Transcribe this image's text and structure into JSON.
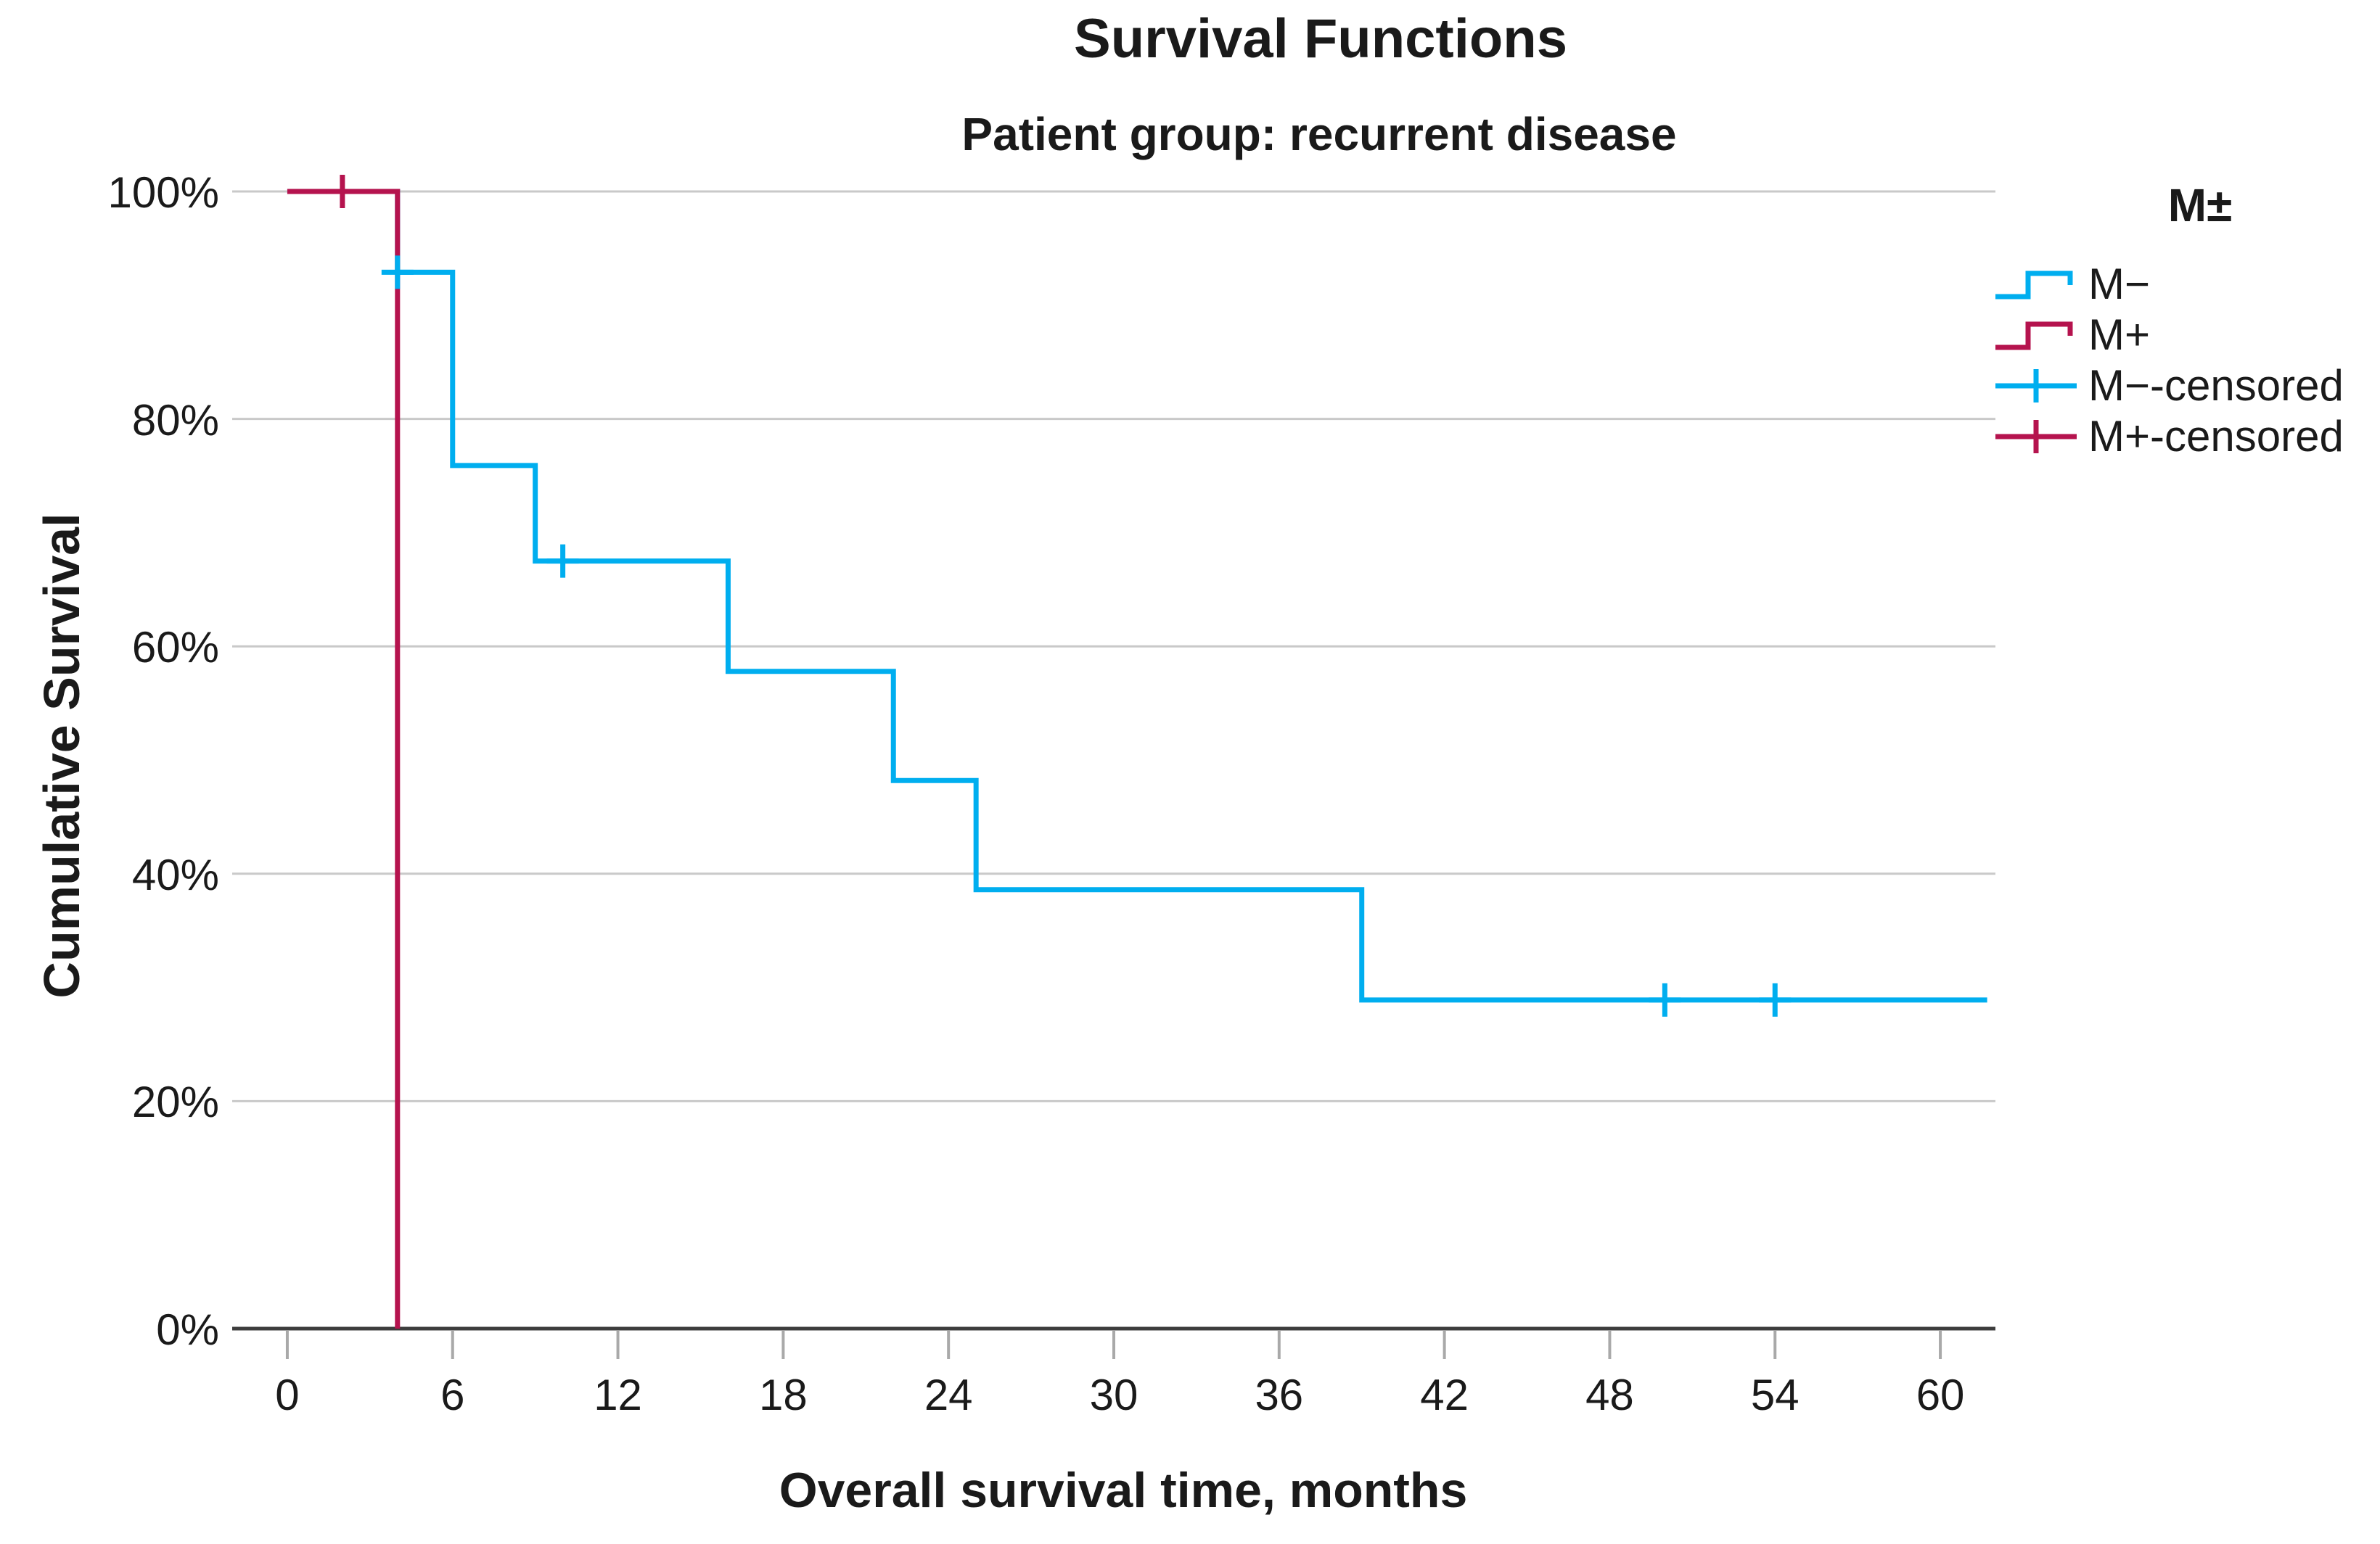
{
  "chart_data": {
    "type": "line",
    "subtype": "kaplan_meier_step",
    "title": "Survival Functions",
    "subtitle": "Patient group: recurrent disease",
    "xlabel": "Overall survival time, months",
    "ylabel": "Cumulative Survival",
    "xlim": [
      -2,
      62
    ],
    "ylim": [
      0,
      100
    ],
    "xticks": [
      0,
      6,
      12,
      18,
      24,
      30,
      36,
      42,
      48,
      54,
      60
    ],
    "yticks": [
      0,
      20,
      40,
      60,
      80,
      100
    ],
    "ytick_suffix": "%",
    "grid": "horizontal-only",
    "legend": {
      "title": "M±",
      "position": "right",
      "entries": [
        {
          "label": "M−",
          "marker": "step-line",
          "color": "#00aeef"
        },
        {
          "label": "M+",
          "marker": "step-line",
          "color": "#b5134e"
        },
        {
          "label": "M−-censored",
          "marker": "plus",
          "color": "#00aeef"
        },
        {
          "label": "M+-censored",
          "marker": "plus",
          "color": "#b5134e"
        }
      ]
    },
    "series": [
      {
        "name": "M−",
        "color": "#00aeef",
        "points": [
          [
            0,
            100
          ],
          [
            4,
            100
          ],
          [
            4,
            92.9
          ],
          [
            6,
            92.9
          ],
          [
            6,
            75.9
          ],
          [
            9,
            75.9
          ],
          [
            9,
            67.5
          ],
          [
            16,
            67.5
          ],
          [
            16,
            57.8
          ],
          [
            22,
            57.8
          ],
          [
            22,
            48.2
          ],
          [
            25,
            48.2
          ],
          [
            25,
            38.6
          ],
          [
            39,
            38.6
          ],
          [
            39,
            28.9
          ],
          [
            61.7,
            28.9
          ]
        ],
        "censored": [
          [
            4,
            92.9
          ],
          [
            10,
            67.5
          ],
          [
            50,
            28.9
          ],
          [
            54,
            28.9
          ]
        ]
      },
      {
        "name": "M+",
        "color": "#b5134e",
        "points": [
          [
            0,
            100
          ],
          [
            4,
            100
          ],
          [
            4,
            0
          ]
        ],
        "censored": [
          [
            2,
            100
          ]
        ]
      }
    ]
  },
  "colors": {
    "grid": "#c9c9c9",
    "axis": "#3d3d3d",
    "tick_mark": "#a9a9a9",
    "text": "#1a1a1a",
    "background": "#ffffff"
  }
}
